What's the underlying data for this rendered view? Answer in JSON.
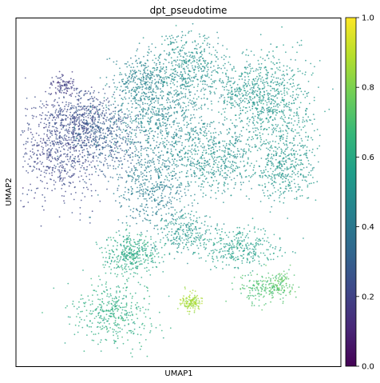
{
  "chart_data": {
    "type": "scatter",
    "title": "dpt_pseudotime",
    "xlabel": "UMAP1",
    "ylabel": "UMAP2",
    "x_ticks_shown": false,
    "y_ticks_shown": false,
    "grid": false,
    "colormap": "viridis",
    "colorbar": {
      "label": "",
      "range": [
        0.0,
        1.0
      ],
      "ticks": [
        0.0,
        0.2,
        0.4,
        0.6,
        0.8,
        1.0
      ],
      "tick_labels": [
        "0.0",
        "0.2",
        "0.4",
        "0.6",
        "0.8",
        "1.0"
      ],
      "stops": [
        "#440154",
        "#482878",
        "#3e4989",
        "#31688e",
        "#26828e",
        "#1f9e89",
        "#35b779",
        "#6ece58",
        "#b5de2b",
        "#fde725"
      ]
    },
    "clusters": [
      {
        "x": 0.13,
        "y": 0.62,
        "sx": 0.07,
        "sy": 0.07,
        "value": 0.22,
        "n": 700
      },
      {
        "x": 0.2,
        "y": 0.72,
        "sx": 0.05,
        "sy": 0.04,
        "value": 0.24,
        "n": 350
      },
      {
        "x": 0.14,
        "y": 0.81,
        "sx": 0.02,
        "sy": 0.015,
        "value": 0.18,
        "n": 90
      },
      {
        "x": 0.28,
        "y": 0.66,
        "sx": 0.06,
        "sy": 0.05,
        "value": 0.3,
        "n": 400
      },
      {
        "x": 0.45,
        "y": 0.72,
        "sx": 0.08,
        "sy": 0.07,
        "value": 0.46,
        "n": 650
      },
      {
        "x": 0.53,
        "y": 0.86,
        "sx": 0.06,
        "sy": 0.05,
        "value": 0.5,
        "n": 450
      },
      {
        "x": 0.38,
        "y": 0.82,
        "sx": 0.04,
        "sy": 0.04,
        "value": 0.44,
        "n": 250
      },
      {
        "x": 0.72,
        "y": 0.79,
        "sx": 0.05,
        "sy": 0.05,
        "value": 0.52,
        "n": 380
      },
      {
        "x": 0.81,
        "y": 0.74,
        "sx": 0.06,
        "sy": 0.08,
        "value": 0.53,
        "n": 500
      },
      {
        "x": 0.83,
        "y": 0.57,
        "sx": 0.05,
        "sy": 0.05,
        "value": 0.52,
        "n": 350
      },
      {
        "x": 0.6,
        "y": 0.6,
        "sx": 0.07,
        "sy": 0.05,
        "value": 0.5,
        "n": 550
      },
      {
        "x": 0.42,
        "y": 0.52,
        "sx": 0.06,
        "sy": 0.06,
        "value": 0.42,
        "n": 450
      },
      {
        "x": 0.35,
        "y": 0.32,
        "sx": 0.04,
        "sy": 0.03,
        "value": 0.6,
        "n": 350
      },
      {
        "x": 0.52,
        "y": 0.38,
        "sx": 0.05,
        "sy": 0.03,
        "value": 0.52,
        "n": 250
      },
      {
        "x": 0.7,
        "y": 0.34,
        "sx": 0.06,
        "sy": 0.03,
        "value": 0.56,
        "n": 300
      },
      {
        "x": 0.76,
        "y": 0.22,
        "sx": 0.04,
        "sy": 0.02,
        "value": 0.7,
        "n": 160
      },
      {
        "x": 0.82,
        "y": 0.24,
        "sx": 0.02,
        "sy": 0.02,
        "value": 0.74,
        "n": 90
      },
      {
        "x": 0.3,
        "y": 0.15,
        "sx": 0.06,
        "sy": 0.05,
        "value": 0.62,
        "n": 400
      },
      {
        "x": 0.54,
        "y": 0.18,
        "sx": 0.015,
        "sy": 0.015,
        "value": 0.86,
        "n": 130
      }
    ]
  }
}
